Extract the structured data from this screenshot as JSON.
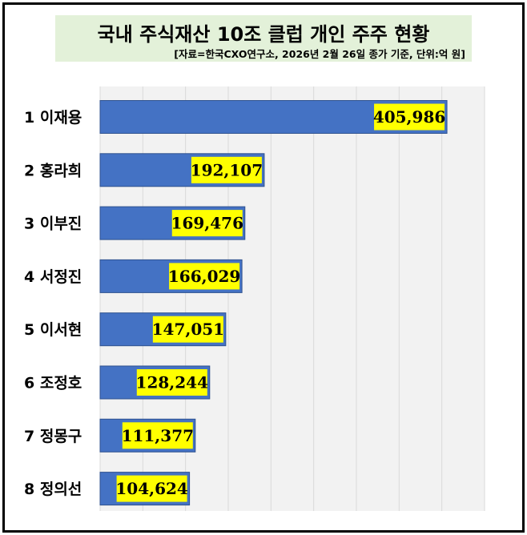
{
  "chart_data": {
    "type": "bar",
    "orientation": "horizontal",
    "title": "국내 주식재산 10조 클럽 개인 주주 현황",
    "subtitle": "[자료=한국CXO연구소, 2026년 2월 26일 종가 기준, 단위:억 원]",
    "categories": [
      "1 이재용",
      "2 홍라희",
      "3 이부진",
      "4 서정진",
      "5 이서현",
      "6 조정호",
      "7 정몽구",
      "8 정의선"
    ],
    "values": [
      405986,
      192107,
      169476,
      166029,
      147051,
      128244,
      111377,
      104624
    ],
    "value_labels": [
      "405,986",
      "192,107",
      "169,476",
      "166,029",
      "147,051",
      "128,244",
      "111,377",
      "104,624"
    ],
    "xlim": [
      0,
      450000
    ],
    "grid": true,
    "bar_color": "#4472c4",
    "label_bg_color": "#ffff00",
    "title_bg_color": "#e3f1d9"
  }
}
